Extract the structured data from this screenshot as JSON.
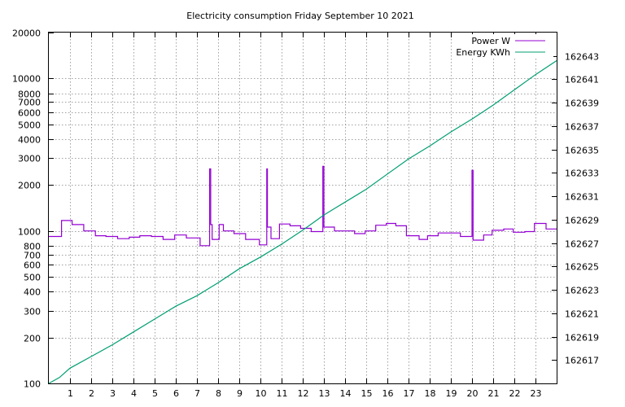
{
  "chart_data": {
    "type": "line",
    "title": "Electricity consumption Friday September 10 2021",
    "xlabel": "",
    "ylabel": "",
    "xlim": [
      0,
      24
    ],
    "x_ticks": [
      1,
      2,
      3,
      4,
      5,
      6,
      7,
      8,
      9,
      10,
      11,
      12,
      13,
      14,
      15,
      16,
      17,
      18,
      19,
      20,
      21,
      22,
      23
    ],
    "y_left_scale": "log",
    "y_left_lim": [
      100,
      20000
    ],
    "y_left_ticks": [
      100,
      200,
      300,
      400,
      500,
      600,
      700,
      800,
      1000,
      2000,
      3000,
      4000,
      5000,
      6000,
      7000,
      8000,
      10000,
      20000
    ],
    "y_right_lim": [
      162615,
      162645
    ],
    "y_right_ticks": [
      162617,
      162619,
      162621,
      162623,
      162625,
      162627,
      162629,
      162631,
      162633,
      162635,
      162637,
      162639,
      162641,
      162643
    ],
    "grid": true,
    "legend_position": "top-right",
    "series": [
      {
        "name": "Power W",
        "axis": "left",
        "color": "#9400d3",
        "style": "steps",
        "points": [
          [
            0,
            920
          ],
          [
            0.6,
            920
          ],
          [
            0.6,
            1170
          ],
          [
            1.1,
            1170
          ],
          [
            1.1,
            1100
          ],
          [
            1.65,
            1100
          ],
          [
            1.65,
            1000
          ],
          [
            2.2,
            1000
          ],
          [
            2.2,
            930
          ],
          [
            2.7,
            930
          ],
          [
            2.7,
            920
          ],
          [
            3.25,
            920
          ],
          [
            3.25,
            890
          ],
          [
            3.8,
            890
          ],
          [
            3.8,
            910
          ],
          [
            4.3,
            910
          ],
          [
            4.3,
            930
          ],
          [
            4.85,
            930
          ],
          [
            4.85,
            920
          ],
          [
            5.4,
            920
          ],
          [
            5.4,
            880
          ],
          [
            5.95,
            880
          ],
          [
            5.95,
            940
          ],
          [
            6.5,
            940
          ],
          [
            6.5,
            900
          ],
          [
            7.15,
            900
          ],
          [
            7.15,
            800
          ],
          [
            7.6,
            800
          ],
          [
            7.6,
            2550
          ],
          [
            7.65,
            2550
          ],
          [
            7.65,
            1100
          ],
          [
            7.72,
            1100
          ],
          [
            7.72,
            880
          ],
          [
            8.05,
            880
          ],
          [
            8.05,
            1100
          ],
          [
            8.25,
            1100
          ],
          [
            8.25,
            1000
          ],
          [
            8.75,
            1000
          ],
          [
            8.75,
            960
          ],
          [
            9.3,
            960
          ],
          [
            9.3,
            880
          ],
          [
            9.95,
            880
          ],
          [
            9.95,
            810
          ],
          [
            10.3,
            810
          ],
          [
            10.3,
            2550
          ],
          [
            10.33,
            2550
          ],
          [
            10.33,
            1060
          ],
          [
            10.5,
            1060
          ],
          [
            10.5,
            890
          ],
          [
            10.9,
            890
          ],
          [
            10.9,
            1110
          ],
          [
            11.4,
            1110
          ],
          [
            11.4,
            1080
          ],
          [
            11.9,
            1080
          ],
          [
            11.9,
            1040
          ],
          [
            12.4,
            1040
          ],
          [
            12.4,
            990
          ],
          [
            12.95,
            990
          ],
          [
            12.95,
            2650
          ],
          [
            13.0,
            2650
          ],
          [
            13.0,
            1060
          ],
          [
            13.5,
            1060
          ],
          [
            13.5,
            1000
          ],
          [
            14.45,
            1000
          ],
          [
            14.45,
            960
          ],
          [
            14.95,
            960
          ],
          [
            14.95,
            1000
          ],
          [
            15.45,
            1000
          ],
          [
            15.45,
            1090
          ],
          [
            15.95,
            1090
          ],
          [
            15.95,
            1120
          ],
          [
            16.4,
            1120
          ],
          [
            16.4,
            1080
          ],
          [
            16.9,
            1080
          ],
          [
            16.9,
            930
          ],
          [
            17.5,
            930
          ],
          [
            17.5,
            880
          ],
          [
            17.9,
            880
          ],
          [
            17.9,
            930
          ],
          [
            18.4,
            930
          ],
          [
            18.4,
            970
          ],
          [
            19.45,
            970
          ],
          [
            19.45,
            920
          ],
          [
            20.0,
            920
          ],
          [
            20.0,
            2500
          ],
          [
            20.05,
            2500
          ],
          [
            20.05,
            870
          ],
          [
            20.55,
            870
          ],
          [
            20.55,
            940
          ],
          [
            20.95,
            940
          ],
          [
            20.95,
            1010
          ],
          [
            21.5,
            1010
          ],
          [
            21.5,
            1030
          ],
          [
            21.95,
            1030
          ],
          [
            21.95,
            980
          ],
          [
            22.5,
            980
          ],
          [
            22.5,
            990
          ],
          [
            22.95,
            990
          ],
          [
            22.95,
            1120
          ],
          [
            23.5,
            1120
          ],
          [
            23.5,
            1030
          ],
          [
            24,
            1030
          ]
        ]
      },
      {
        "name": "Energy KWh",
        "axis": "right",
        "color": "#009e73",
        "style": "line",
        "points": [
          [
            0,
            162615.0
          ],
          [
            0.5,
            162615.5
          ],
          [
            1,
            162616.3
          ],
          [
            2,
            162617.3
          ],
          [
            3,
            162618.3
          ],
          [
            4,
            162619.4
          ],
          [
            5,
            162620.5
          ],
          [
            6,
            162621.6
          ],
          [
            7,
            162622.5
          ],
          [
            8,
            162623.6
          ],
          [
            9,
            162624.8
          ],
          [
            10,
            162625.8
          ],
          [
            11,
            162626.9
          ],
          [
            12,
            162628.1
          ],
          [
            13,
            162629.4
          ],
          [
            14,
            162630.5
          ],
          [
            15,
            162631.6
          ],
          [
            16,
            162632.9
          ],
          [
            17,
            162634.2
          ],
          [
            18,
            162635.3
          ],
          [
            19,
            162636.5
          ],
          [
            20,
            162637.6
          ],
          [
            21,
            162638.8
          ],
          [
            22,
            162640.1
          ],
          [
            23,
            162641.4
          ],
          [
            24,
            162642.6
          ]
        ]
      }
    ]
  }
}
